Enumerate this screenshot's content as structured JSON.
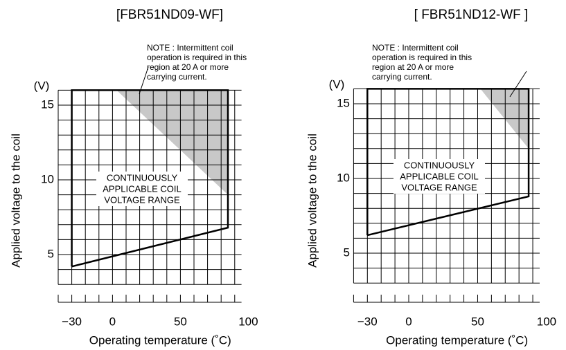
{
  "chart_data": [
    {
      "type": "area",
      "title": "[FBR51ND09-WF]",
      "xlabel": "Operating temperature (˚C)",
      "ylabel": "Applied voltage to the coil",
      "y_unit": "(V)",
      "xlim": [
        -40,
        95
      ],
      "ylim": [
        3,
        16
      ],
      "xticks": [
        {
          "value": -30,
          "label": "−30"
        },
        0,
        50,
        100
      ],
      "yticks": [
        5,
        10,
        15
      ],
      "xgrid": [
        -40,
        -30,
        -20,
        -10,
        0,
        10,
        20,
        30,
        40,
        50,
        60,
        70,
        80,
        90
      ],
      "ygrid": [
        3,
        4,
        5,
        6,
        7,
        8,
        9,
        10,
        11,
        12,
        13,
        14,
        15,
        16
      ],
      "series": [
        {
          "color": "#000000",
          "x": [
            -30,
            -30,
            85,
            85,
            -30
          ],
          "values": [
            4.2,
            16,
            16,
            6.8,
            4.2
          ]
        }
      ],
      "shaded": {
        "color": "#c8c8c8",
        "x": [
          3,
          85,
          85
        ],
        "values": [
          16,
          9,
          16
        ]
      },
      "note": [
        "NOTE : Intermittent coil",
        "operation is required in this",
        "region at 20 A or more",
        "carrying current."
      ],
      "region_label": [
        "CONTINUOUSLY",
        "APPLICABLE COIL",
        "VOLTAGE RANGE"
      ]
    },
    {
      "type": "area",
      "title": "[ FBR51ND12-WF ]",
      "xlabel": "Operating temperature (˚C)",
      "ylabel": "Applied voltage to the coil",
      "y_unit": "(V)",
      "xlim": [
        -40,
        95
      ],
      "ylim": [
        3,
        16
      ],
      "xticks": [
        {
          "value": -30,
          "label": "−30"
        },
        0,
        50,
        100
      ],
      "yticks": [
        5,
        10,
        15
      ],
      "xgrid": [
        -40,
        -30,
        -20,
        -10,
        0,
        10,
        20,
        30,
        40,
        50,
        60,
        70,
        80,
        90
      ],
      "ygrid": [
        3,
        4,
        5,
        6,
        7,
        8,
        9,
        10,
        11,
        12,
        13,
        14,
        15,
        16
      ],
      "series": [
        {
          "color": "#000000",
          "x": [
            -30,
            -30,
            87,
            87,
            -30
          ],
          "values": [
            6.2,
            16,
            16,
            8.8,
            6.2
          ]
        }
      ],
      "shaded": {
        "color": "#c8c8c8",
        "x": [
          52,
          87,
          87
        ],
        "values": [
          16,
          12,
          16
        ]
      },
      "note": [
        "NOTE : Intermittent coil",
        "operation is required in this",
        "region at 20 A or more",
        "carrying current."
      ],
      "region_label": [
        "CONTINUOUSLY",
        "APPLICABLE COIL",
        "VOLTAGE RANGE"
      ]
    }
  ]
}
